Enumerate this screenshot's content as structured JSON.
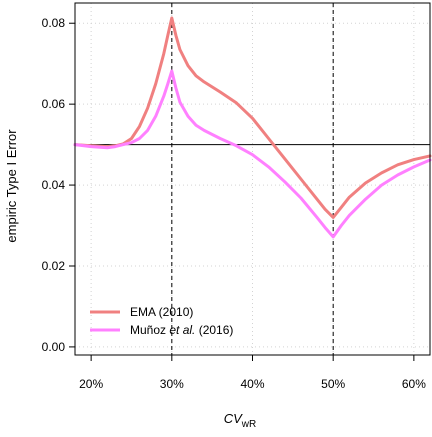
{
  "chart_data": {
    "type": "line",
    "xlabel": "CV",
    "xlabel_sub": "wR",
    "ylabel": "empiric Type I Error",
    "xlim": [
      0.18,
      0.62
    ],
    "ylim": [
      -0.002,
      0.085
    ],
    "x_ticks": [
      0.2,
      0.3,
      0.4,
      0.5,
      0.6
    ],
    "x_tick_labels": [
      "20%",
      "30%",
      "40%",
      "50%",
      "60%"
    ],
    "y_ticks": [
      0.0,
      0.02,
      0.04,
      0.06,
      0.08
    ],
    "y_tick_labels": [
      "0.00",
      "0.02",
      "0.04",
      "0.06",
      "0.08"
    ],
    "grid": true,
    "reference_line_y": 0.05,
    "vertical_lines_x": [
      0.3,
      0.5
    ],
    "legend_position": "bottom-left",
    "series": [
      {
        "name": "EMA (2010)",
        "color": "#F08080",
        "x": [
          0.18,
          0.2,
          0.22,
          0.23,
          0.24,
          0.25,
          0.26,
          0.27,
          0.28,
          0.29,
          0.295,
          0.3,
          0.305,
          0.31,
          0.32,
          0.33,
          0.34,
          0.36,
          0.38,
          0.4,
          0.42,
          0.44,
          0.46,
          0.48,
          0.49,
          0.5,
          0.51,
          0.52,
          0.54,
          0.56,
          0.58,
          0.6,
          0.62
        ],
        "values": [
          0.05,
          0.0497,
          0.0495,
          0.0497,
          0.0502,
          0.0515,
          0.0545,
          0.059,
          0.065,
          0.0725,
          0.077,
          0.0813,
          0.077,
          0.0735,
          0.0695,
          0.067,
          0.0655,
          0.063,
          0.0603,
          0.0565,
          0.0515,
          0.0465,
          0.0415,
          0.0365,
          0.034,
          0.032,
          0.0345,
          0.037,
          0.0405,
          0.043,
          0.045,
          0.0463,
          0.0472
        ]
      },
      {
        "name": "Muñoz et al. (2016)",
        "name_parts": [
          "Muñoz ",
          "et al.",
          " (2016)"
        ],
        "color": "#FF80FF",
        "x": [
          0.18,
          0.2,
          0.22,
          0.23,
          0.24,
          0.25,
          0.26,
          0.27,
          0.28,
          0.29,
          0.295,
          0.3,
          0.305,
          0.31,
          0.32,
          0.33,
          0.34,
          0.36,
          0.38,
          0.4,
          0.42,
          0.44,
          0.46,
          0.48,
          0.49,
          0.5,
          0.51,
          0.52,
          0.54,
          0.56,
          0.58,
          0.6,
          0.62
        ],
        "values": [
          0.05,
          0.0495,
          0.0492,
          0.0495,
          0.05,
          0.0505,
          0.0515,
          0.0535,
          0.057,
          0.062,
          0.065,
          0.0682,
          0.064,
          0.0605,
          0.057,
          0.0548,
          0.0535,
          0.0515,
          0.0497,
          0.0475,
          0.0445,
          0.0408,
          0.0368,
          0.032,
          0.0295,
          0.0272,
          0.03,
          0.0325,
          0.0365,
          0.04,
          0.0425,
          0.0445,
          0.0462
        ]
      }
    ]
  }
}
